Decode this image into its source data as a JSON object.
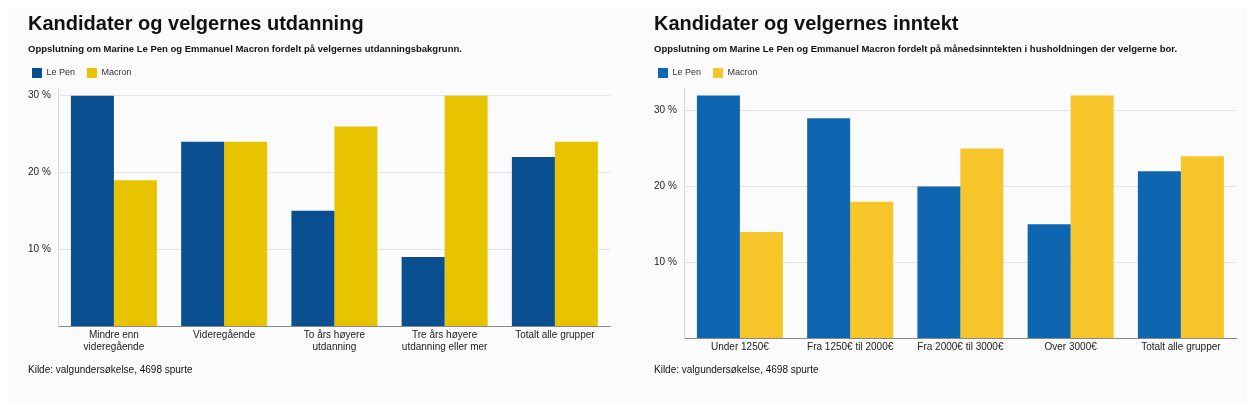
{
  "chart_data": [
    {
      "type": "bar",
      "title": "Kandidater og velgernes utdanning",
      "subtitle": "Oppslutning om Marine Le Pen og Emmanuel Macron fordelt på velgernes utdanningsbakgrunn.",
      "categories": [
        "Mindre enn videregående",
        "Videregående",
        "To års høyere utdanning",
        "Tre års høyere utdanning eller mer",
        "Totalt alle grupper"
      ],
      "series": [
        {
          "name": "Le Pen",
          "color": "#0a4f8f",
          "values": [
            30,
            24,
            15,
            9,
            22
          ]
        },
        {
          "name": "Macron",
          "color": "#e8c400",
          "values": [
            19,
            24,
            26,
            30,
            24
          ]
        }
      ],
      "ylim": [
        0,
        31
      ],
      "yticks": [
        {
          "value": 10,
          "label": "10 %"
        },
        {
          "value": 20,
          "label": "20 %"
        },
        {
          "value": 30,
          "label": "30 %"
        }
      ],
      "grid": "y",
      "legend": "top left",
      "annotations": [
        "Kilde: valgundersøkelse, 4698 spurte"
      ]
    },
    {
      "type": "bar",
      "title": "Kandidater og velgernes inntekt",
      "subtitle": "Oppslutning om Marine Le Pen og Emmanuel Macron fordelt på månedsinntekten i husholdningen der velgerne bor.",
      "categories": [
        "Under 1250€",
        "Fra 1250€ til 2000€",
        "Fra 2000€ til 3000€",
        "Over 3000€",
        "Totalt alle grupper"
      ],
      "series": [
        {
          "name": "Le Pen",
          "color": "#0f66b0",
          "values": [
            32,
            29,
            20,
            15,
            22
          ]
        },
        {
          "name": "Macron",
          "color": "#f5c52a",
          "values": [
            14,
            18,
            25,
            32,
            24
          ]
        }
      ],
      "ylim": [
        0,
        33
      ],
      "yticks": [
        {
          "value": 10,
          "label": "10 %"
        },
        {
          "value": 20,
          "label": "20 %"
        },
        {
          "value": 30,
          "label": "30 %"
        }
      ],
      "grid": "y",
      "legend": "top left",
      "annotations": [
        "Kilde: valgundersøkelse, 4698 spurte"
      ]
    }
  ]
}
